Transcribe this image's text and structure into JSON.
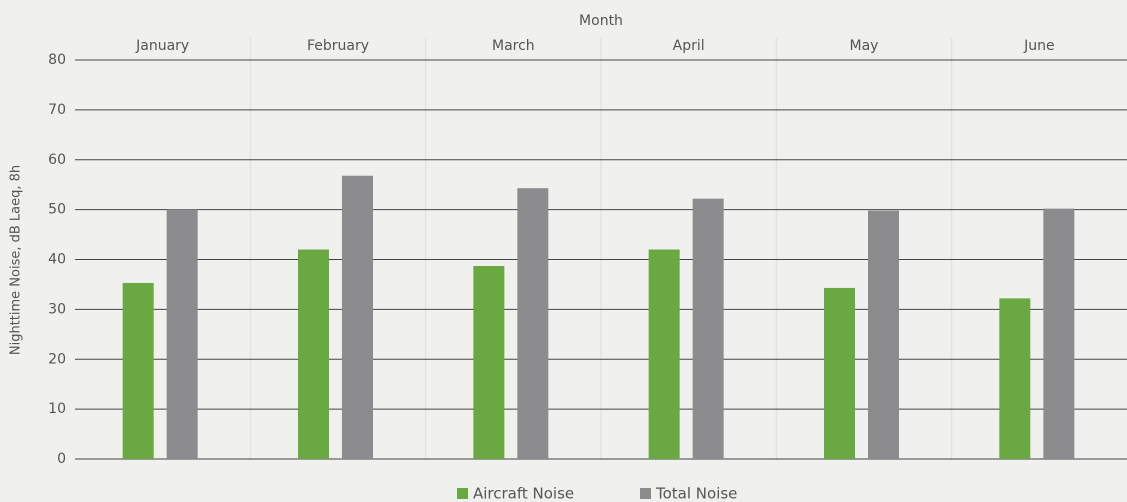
{
  "chart_data": {
    "type": "bar",
    "x_label": "Month",
    "y_label": "Nighttime Noise, dB Laeq, 8h",
    "categories": [
      "January",
      "February",
      "March",
      "April",
      "May",
      "June"
    ],
    "series": [
      {
        "name": "Aircraft Noise",
        "color": "#6aa842",
        "values": [
          35.3,
          42,
          38.7,
          42,
          34.3,
          32.2
        ]
      },
      {
        "name": "Total Noise",
        "color": "#8c8c8e",
        "values": [
          50,
          56.8,
          54.3,
          52.2,
          49.8,
          50.2
        ]
      }
    ],
    "ylim": [
      0,
      80
    ],
    "yticks": [
      0,
      10,
      20,
      30,
      40,
      50,
      60,
      70,
      80
    ],
    "grid": true,
    "legend": "bottom"
  }
}
